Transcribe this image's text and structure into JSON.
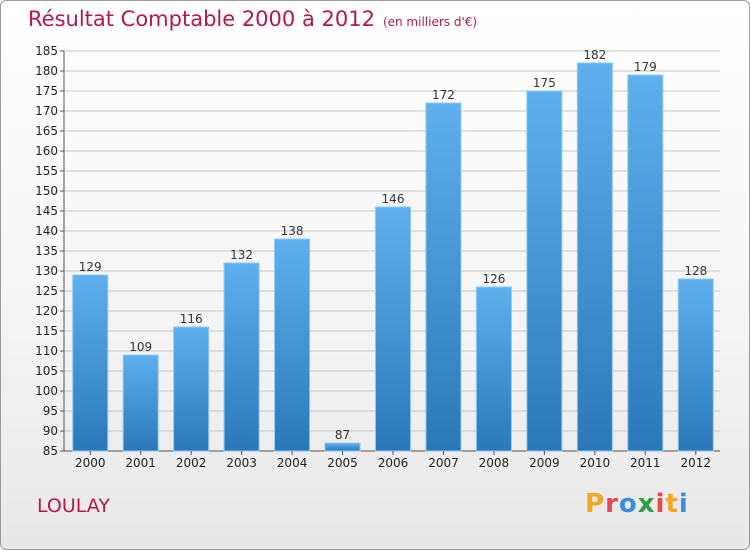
{
  "title": "Résultat Comptable 2000 à 2012",
  "subtitle": "(en milliers d'€)",
  "place": "LOULAY",
  "logo": {
    "letters": [
      "P",
      "r",
      "o",
      "x",
      "i",
      "t",
      "i"
    ],
    "colors": [
      "#f5a623",
      "#e8484b",
      "#3a8fd8",
      "#2f9e44",
      "#e8484b",
      "#f5a623",
      "#3a8fd8"
    ]
  },
  "colors": {
    "title": "#b5174f",
    "bar_top": "#5fb0ee",
    "bar_bottom": "#2a78b8",
    "grid": "#c8c8c8"
  },
  "chart_data": {
    "type": "bar",
    "title": "Résultat Comptable 2000 à 2012",
    "subtitle": "(en milliers d'€)",
    "categories": [
      "2000",
      "2001",
      "2002",
      "2003",
      "2004",
      "2005",
      "2006",
      "2007",
      "2008",
      "2009",
      "2010",
      "2011",
      "2012"
    ],
    "values": [
      129,
      109,
      116,
      132,
      138,
      87,
      146,
      172,
      126,
      175,
      182,
      179,
      128
    ],
    "ylim": [
      85,
      185
    ],
    "yticks": [
      85,
      90,
      95,
      100,
      105,
      110,
      115,
      120,
      125,
      130,
      135,
      140,
      145,
      150,
      155,
      160,
      165,
      170,
      175,
      180,
      185
    ],
    "grid": true,
    "data_labels": true
  }
}
